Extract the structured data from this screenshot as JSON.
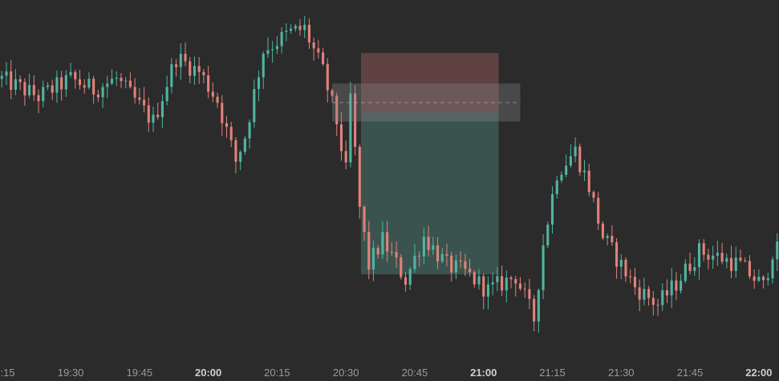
{
  "chart_data": {
    "type": "candlestick",
    "title": "",
    "xlabel": "",
    "ylabel": "",
    "x_ticks": [
      {
        "label": "19:15",
        "major": false,
        "t": 0
      },
      {
        "label": "19:30",
        "major": false,
        "t": 15
      },
      {
        "label": "19:45",
        "major": false,
        "t": 30
      },
      {
        "label": "20:00",
        "major": true,
        "t": 45
      },
      {
        "label": "20:15",
        "major": false,
        "t": 60
      },
      {
        "label": "20:30",
        "major": false,
        "t": 75
      },
      {
        "label": "20:45",
        "major": false,
        "t": 90
      },
      {
        "label": "21:00",
        "major": true,
        "t": 105
      },
      {
        "label": "21:15",
        "major": false,
        "t": 120
      },
      {
        "label": "21:30",
        "major": false,
        "t": 135
      },
      {
        "label": "21:45",
        "major": false,
        "t": 150
      },
      {
        "label": "22:00",
        "major": true,
        "t": 165
      }
    ],
    "x_range": [
      -0.4,
      169.4
    ],
    "y_range": [
      0,
      100
    ],
    "grid": false,
    "colors": {
      "background": "#2b2b2b",
      "up": "#4fb5a0",
      "down": "#e2827a",
      "axis_text": "#9a9a9a",
      "axis_text_major": "#cfcfcf",
      "stop_zone": "#6a4646",
      "target_zone": "#3e5a55",
      "entry_band": "#8a8a8a"
    },
    "waypoints": [
      [
        0,
        78
      ],
      [
        8,
        73
      ],
      [
        15,
        78
      ],
      [
        20,
        75
      ],
      [
        25,
        78
      ],
      [
        33,
        66
      ],
      [
        38,
        84
      ],
      [
        43,
        80
      ],
      [
        47,
        72
      ],
      [
        51,
        55
      ],
      [
        53,
        62
      ],
      [
        57,
        86
      ],
      [
        63,
        91
      ],
      [
        66,
        92
      ],
      [
        70,
        80
      ],
      [
        73,
        66
      ],
      [
        75,
        52
      ],
      [
        76,
        73
      ],
      [
        78,
        42
      ],
      [
        80,
        26
      ],
      [
        83,
        33
      ],
      [
        88,
        22
      ],
      [
        92,
        34
      ],
      [
        97,
        26
      ],
      [
        101,
        24
      ],
      [
        106,
        19
      ],
      [
        112,
        23
      ],
      [
        116,
        11
      ],
      [
        118,
        32
      ],
      [
        121,
        52
      ],
      [
        125,
        58
      ],
      [
        128,
        48
      ],
      [
        131,
        34
      ],
      [
        138,
        20
      ],
      [
        143,
        15
      ],
      [
        147,
        21
      ],
      [
        152,
        30
      ],
      [
        157,
        28
      ],
      [
        161,
        26
      ],
      [
        166,
        20
      ],
      [
        168,
        30
      ]
    ],
    "position": {
      "direction": "short",
      "start_t": 78.3,
      "end_t": 108.3,
      "stop_price": 85.2,
      "entry_price": 68.6,
      "target_price": 23.5,
      "entry_band_start_t": 72,
      "entry_band_end_t": 113,
      "entry_band_top": 76.7,
      "entry_band_bottom": 66.1
    }
  }
}
